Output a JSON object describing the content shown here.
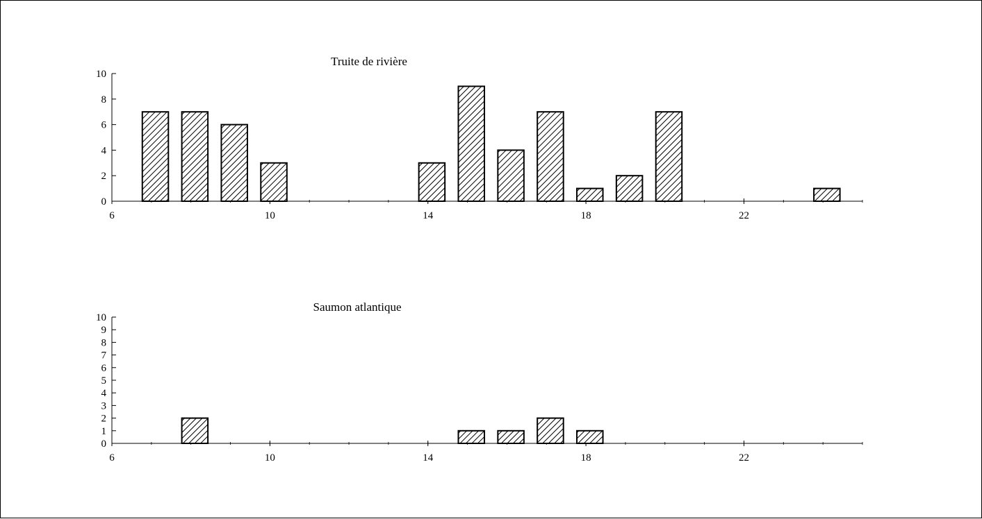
{
  "chart_data": [
    {
      "type": "bar",
      "title": "Truite de rivière",
      "xlabel": "",
      "ylabel": "",
      "x_ticks": [
        6,
        10,
        14,
        18,
        22
      ],
      "y_ticks": [
        0,
        2,
        4,
        6,
        8,
        10
      ],
      "xlim": [
        6,
        25
      ],
      "ylim": [
        0,
        10
      ],
      "x": [
        7,
        8,
        9,
        10,
        14,
        15,
        16,
        17,
        18,
        19,
        20,
        24
      ],
      "values": [
        7,
        7,
        6,
        3,
        3,
        9,
        4,
        7,
        1,
        2,
        7,
        1
      ],
      "grid": false,
      "bar_pattern": "diagonal-hatch"
    },
    {
      "type": "bar",
      "title": "Saumon atlantique",
      "xlabel": "",
      "ylabel": "",
      "x_ticks": [
        6,
        10,
        14,
        18,
        22
      ],
      "y_ticks": [
        0,
        1,
        2,
        3,
        4,
        5,
        6,
        7,
        8,
        9,
        10
      ],
      "xlim": [
        6,
        25
      ],
      "ylim": [
        0,
        10
      ],
      "x": [
        8,
        15,
        16,
        17,
        18
      ],
      "values": [
        2,
        1,
        1,
        2,
        1
      ],
      "grid": false,
      "bar_pattern": "diagonal-hatch"
    }
  ],
  "colors": {
    "bar_fill": "#ffffff",
    "hatch": "#000000",
    "axis": "#000000"
  }
}
